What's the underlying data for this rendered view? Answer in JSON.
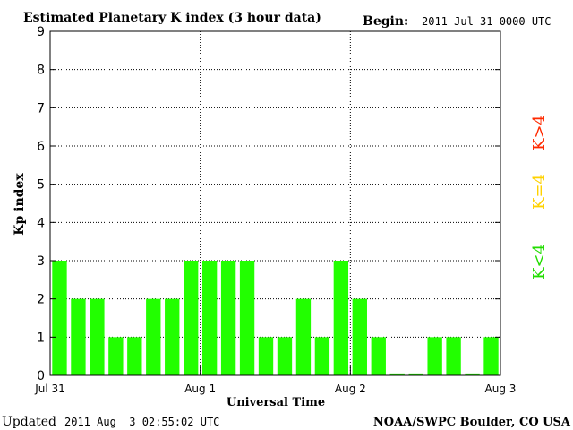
{
  "header": {
    "title": "Estimated Planetary K index (3 hour data)",
    "begin_label": "Begin:",
    "begin_value": "2011 Jul 31 0000 UTC"
  },
  "footer": {
    "updated_label": "Updated",
    "updated_value": "2011 Aug  3 02:55:02 UTC",
    "source": "NOAA/SWPC Boulder, CO USA"
  },
  "legend": {
    "items": [
      {
        "label": "K>4",
        "color": "#ff2a00"
      },
      {
        "label": "K=4",
        "color": "#ffd200"
      },
      {
        "label": "K<4",
        "color": "#22dd00"
      }
    ]
  },
  "chart_data": {
    "type": "bar",
    "title": "Estimated Planetary K index (3 hour data)",
    "xlabel": "Universal Time",
    "ylabel": "Kp index",
    "ylim": [
      0,
      9
    ],
    "yticks": [
      0,
      1,
      2,
      3,
      4,
      5,
      6,
      7,
      8,
      9
    ],
    "x_tick_labels": [
      "Jul 31",
      "Aug 1",
      "Aug 2",
      "Aug 3"
    ],
    "bar_color": "#22ff00",
    "values": [
      3,
      2,
      2,
      1,
      1,
      2,
      2,
      3,
      3,
      3,
      3,
      1,
      1,
      2,
      1,
      3,
      2,
      1,
      0.05,
      0.05,
      1,
      1,
      0.05,
      1
    ],
    "grid": "dotted"
  }
}
